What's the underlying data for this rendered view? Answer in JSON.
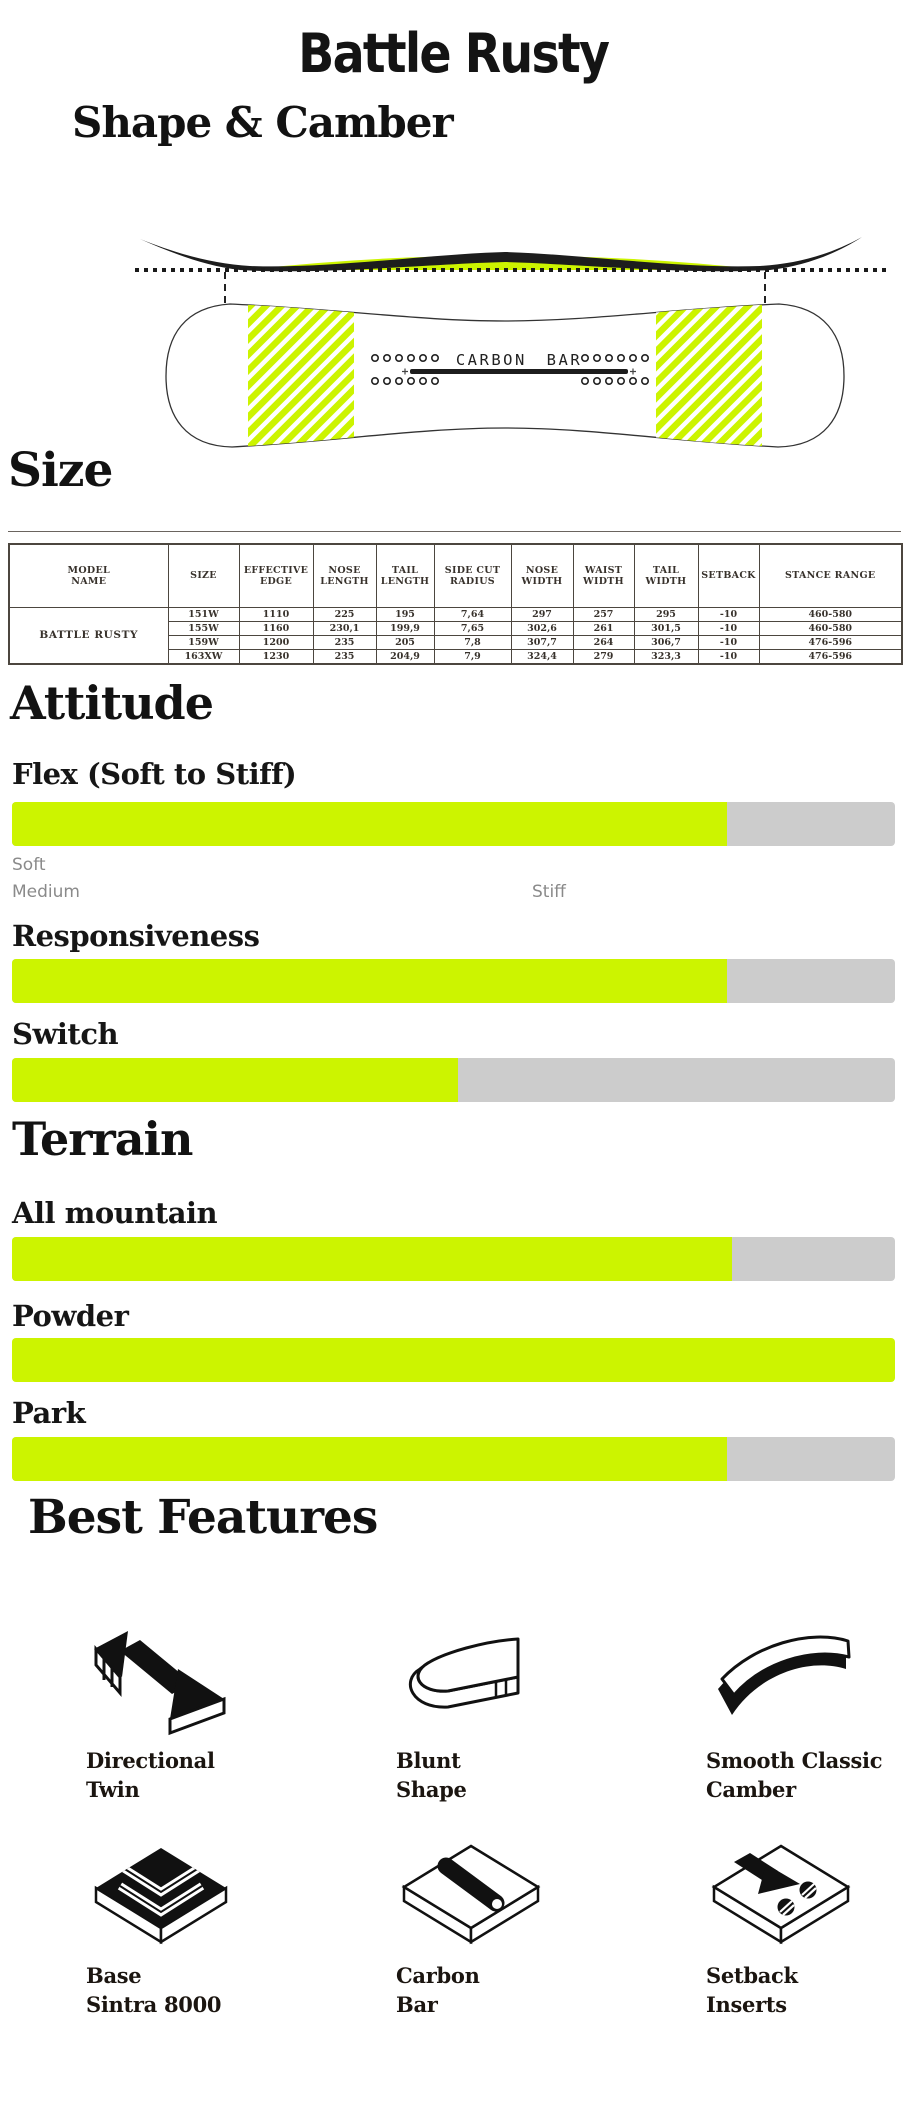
{
  "title": "Battle Rusty",
  "colors": {
    "accent": "#ccf400",
    "track": "#cccccc"
  },
  "shape": {
    "heading": "Shape & Camber",
    "board_center_label": "CARBON BAR"
  },
  "size": {
    "heading": "Size",
    "table": {
      "headers": [
        "MODEL\nNAME",
        "SIZE",
        "EFFECTIVE\nEDGE",
        "NOSE\nLENGTH",
        "TAIL\nLENGTH",
        "SIDE CUT\nRADIUS",
        "NOSE\nWIDTH",
        "WAIST\nWIDTH",
        "TAIL\nWIDTH",
        "SETBACK",
        "STANCE RANGE"
      ],
      "model_name": "BATTLE RUSTY",
      "rows": [
        [
          "151W",
          "1110",
          "225",
          "195",
          "7,64",
          "297",
          "257",
          "295",
          "-10",
          "460-580"
        ],
        [
          "155W",
          "1160",
          "230,1",
          "199,9",
          "7,65",
          "302,6",
          "261",
          "301,5",
          "-10",
          "460-580"
        ],
        [
          "159W",
          "1200",
          "235",
          "205",
          "7,8",
          "307,7",
          "264",
          "306,7",
          "-10",
          "476-596"
        ],
        [
          "163XW",
          "1230",
          "235",
          "204,9",
          "7,9",
          "324,4",
          "279",
          "323,3",
          "-10",
          "476-596"
        ]
      ]
    }
  },
  "attitude": {
    "heading": "Attitude",
    "bars": [
      {
        "label": "Flex (Soft to Stiff)",
        "percent": 81
      },
      {
        "label": "Responsiveness",
        "percent": 81
      },
      {
        "label": "Switch",
        "percent": 50.5
      }
    ],
    "legend": {
      "soft": "Soft",
      "medium": "Medium",
      "stiff": "Stiff"
    }
  },
  "terrain": {
    "heading": "Terrain",
    "bars": [
      {
        "label": "All mountain",
        "percent": 81.5
      },
      {
        "label": "Powder",
        "percent": 100
      },
      {
        "label": "Park",
        "percent": 81
      }
    ]
  },
  "features": {
    "heading": "Best Features",
    "items": [
      {
        "icon": "directional-twin-icon",
        "label": "Directional\nTwin"
      },
      {
        "icon": "blunt-shape-icon",
        "label": "Blunt\nShape"
      },
      {
        "icon": "smooth-classic-camber-icon",
        "label": "Smooth Classic\nCamber"
      },
      {
        "icon": "base-sintra-8000-icon",
        "label": "Base\nSintra 8000"
      },
      {
        "icon": "carbon-bar-icon",
        "label": "Carbon\nBar"
      },
      {
        "icon": "setback-inserts-icon",
        "label": "Setback\nInserts"
      }
    ]
  }
}
